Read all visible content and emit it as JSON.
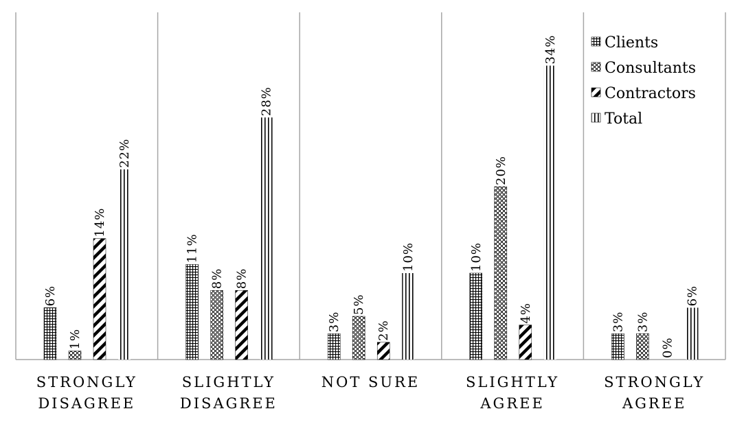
{
  "chart_data": {
    "type": "bar",
    "categories": [
      [
        "STRONGLY",
        "DISAGREE"
      ],
      [
        "SLIGHTLY",
        "DISAGREE"
      ],
      [
        "NOT SURE"
      ],
      [
        "SLIGHTLY",
        "AGREE"
      ],
      [
        "STRONGLY",
        "AGREE"
      ]
    ],
    "series": [
      {
        "name": "Clients",
        "pattern": "grid",
        "values": [
          6,
          11,
          3,
          10,
          3
        ],
        "labels": [
          "6%",
          "11%",
          "3%",
          "10%",
          "3%"
        ]
      },
      {
        "name": "Consultants",
        "pattern": "checker",
        "values": [
          1,
          8,
          5,
          20,
          3
        ],
        "labels": [
          "1%",
          "8%",
          "5%",
          "20%",
          "3%"
        ]
      },
      {
        "name": "Contractors",
        "pattern": "diagonal",
        "values": [
          14,
          8,
          2,
          4,
          0
        ],
        "labels": [
          "14%",
          "8%",
          "2%",
          "4%",
          "0%"
        ]
      },
      {
        "name": "Total",
        "pattern": "vertical-lines",
        "values": [
          22,
          28,
          10,
          34,
          6
        ],
        "labels": [
          "22%",
          "28%",
          "10%",
          "34%",
          "6%"
        ]
      }
    ],
    "value_unit": "%",
    "ylim": [
      0,
      40
    ],
    "y_axis_visible": false,
    "grid": "vertical category separators",
    "legend_position": "top-right",
    "colors": {
      "ink": "#000000",
      "gridline": "#a6a6a6",
      "background": "#ffffff"
    }
  }
}
